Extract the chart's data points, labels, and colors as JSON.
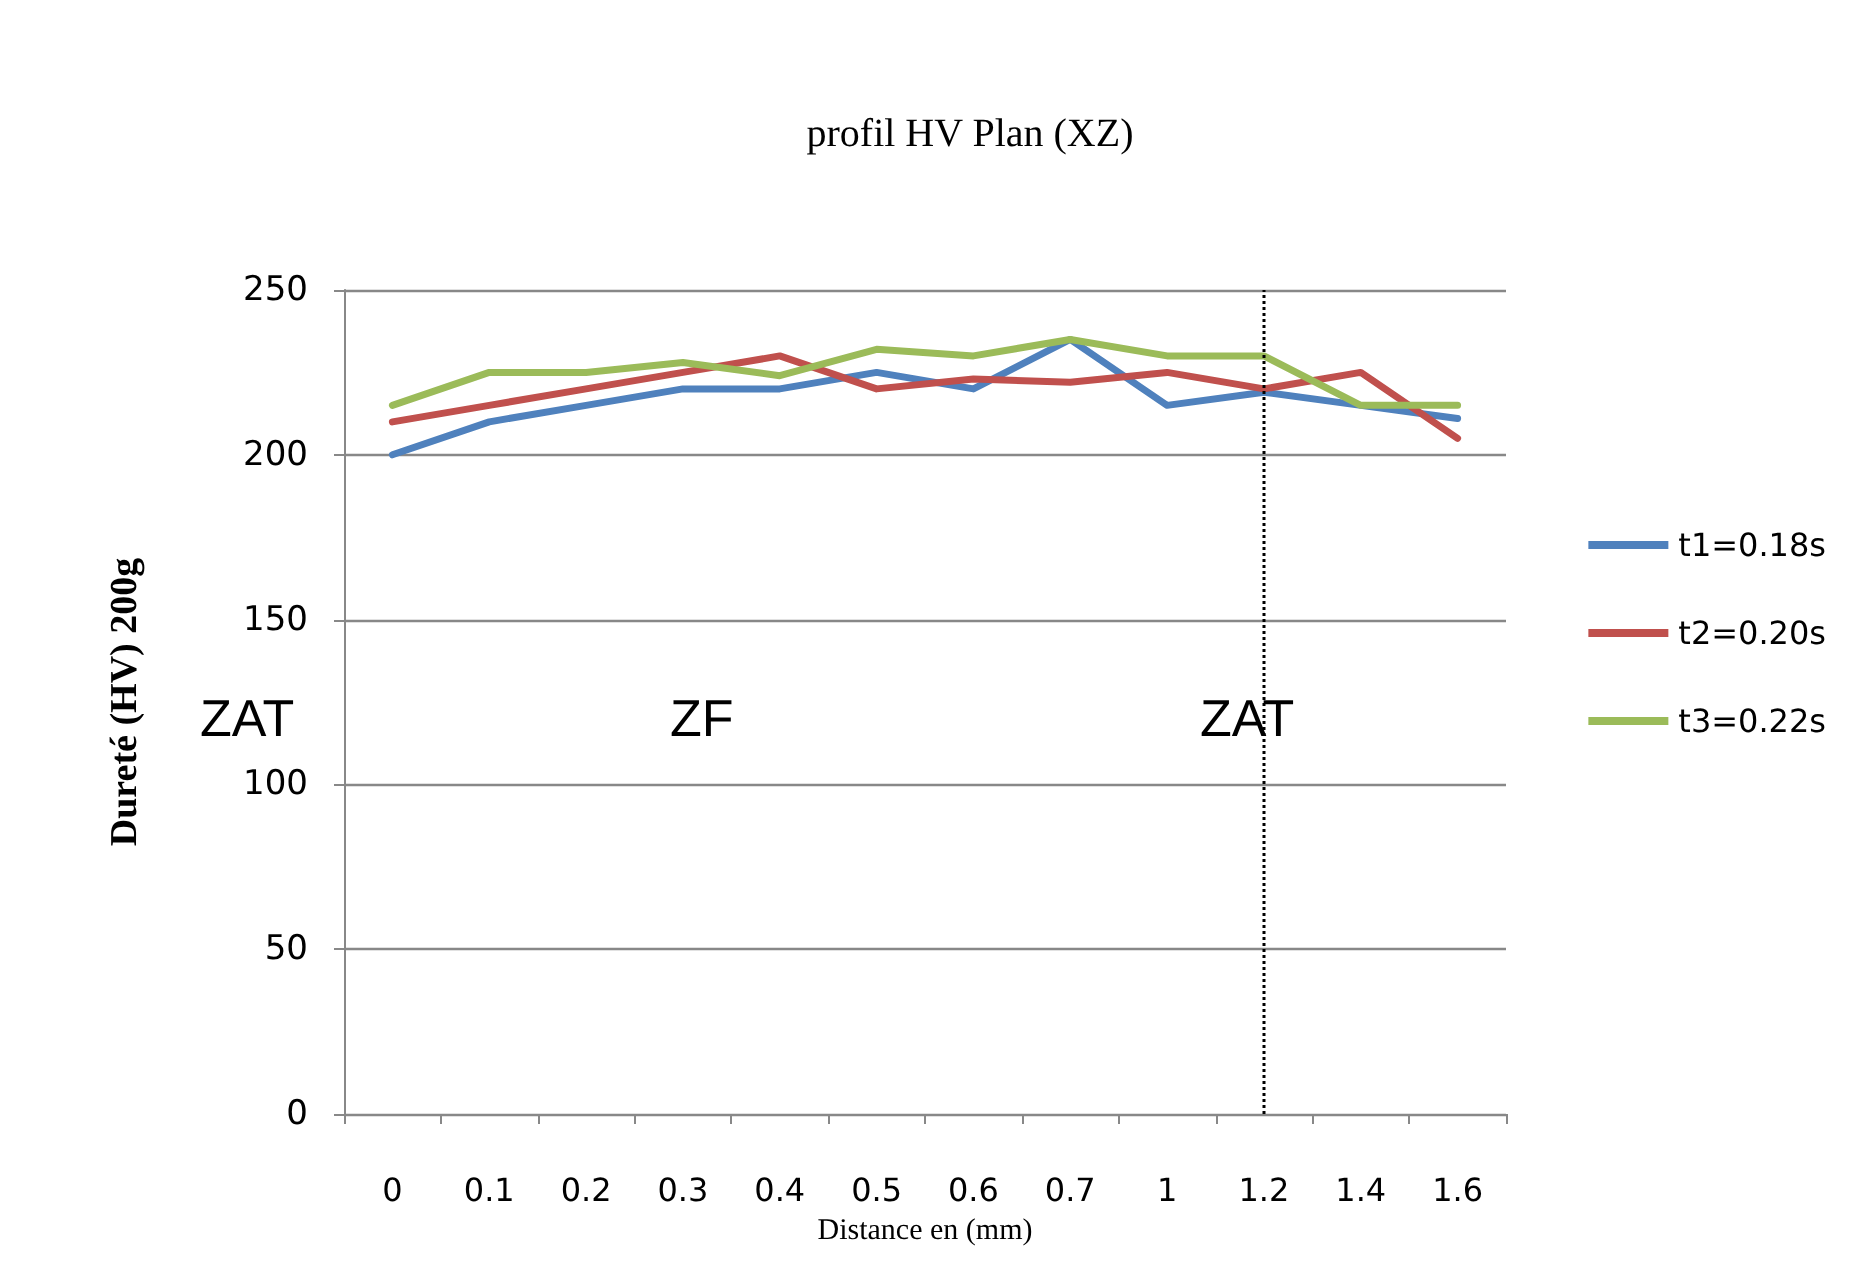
{
  "chart_data": {
    "type": "line",
    "title": "profil HV Plan (XZ)",
    "xlabel": "Distance en (mm)",
    "ylabel": "Dureté (HV) 200g",
    "categories": [
      "0",
      "0.1",
      "0.2",
      "0.3",
      "0.4",
      "0.5",
      "0.6",
      "0.7",
      "1",
      "1.2",
      "1.4",
      "1.6"
    ],
    "series": [
      {
        "name": "t1=0.18s",
        "color": "#4f81bd",
        "values": [
          200,
          210,
          215,
          220,
          220,
          225,
          220,
          235,
          215,
          219,
          215,
          211
        ]
      },
      {
        "name": "t2=0.20s",
        "color": "#c0504d",
        "values": [
          210,
          215,
          220,
          225,
          230,
          220,
          223,
          222,
          225,
          220,
          225,
          205
        ]
      },
      {
        "name": "t3=0.22s",
        "color": "#9bbb59",
        "values": [
          215,
          225,
          225,
          228,
          224,
          232,
          230,
          235,
          230,
          230,
          215,
          215
        ]
      }
    ],
    "ylim": [
      0,
      250
    ],
    "yticks": [
      0,
      50,
      100,
      150,
      200,
      250
    ],
    "grid": "y",
    "legend": "right",
    "marker": "none",
    "line_style": "solid",
    "ref_lines": [
      {
        "axis": "x",
        "value": "1.2",
        "color": "#000000",
        "line_style": "dotted"
      }
    ],
    "annotations": [
      "ZAT",
      "ZF",
      "ZAT"
    ]
  }
}
